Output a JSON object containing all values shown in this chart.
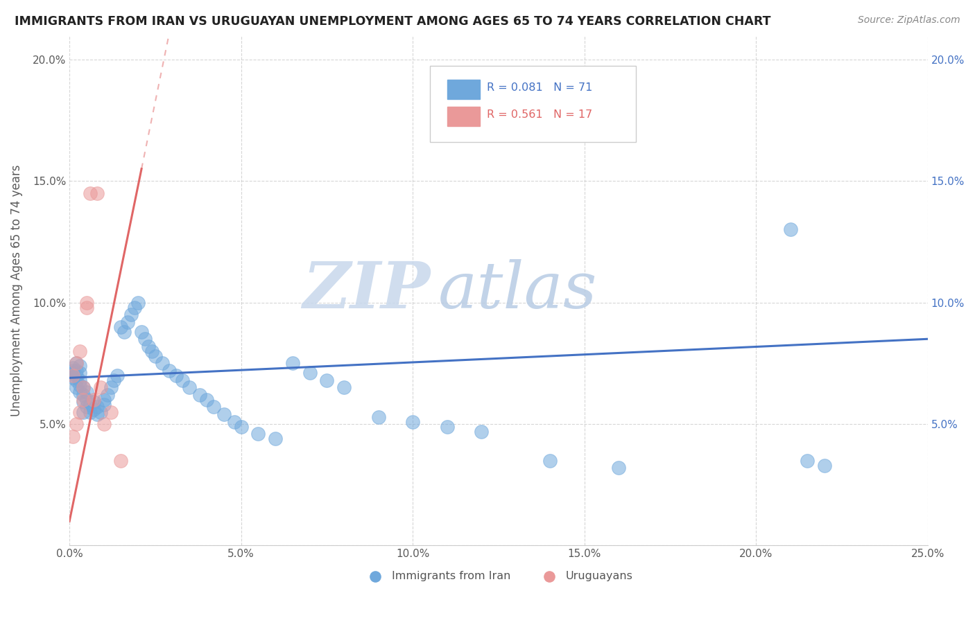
{
  "title": "IMMIGRANTS FROM IRAN VS URUGUAYAN UNEMPLOYMENT AMONG AGES 65 TO 74 YEARS CORRELATION CHART",
  "source": "Source: ZipAtlas.com",
  "ylabel": "Unemployment Among Ages 65 to 74 years",
  "xlim": [
    0.0,
    0.25
  ],
  "ylim": [
    0.0,
    0.21
  ],
  "xticks": [
    0.0,
    0.05,
    0.1,
    0.15,
    0.2,
    0.25
  ],
  "xtick_labels": [
    "0.0%",
    "5.0%",
    "10.0%",
    "15.0%",
    "20.0%",
    "25.0%"
  ],
  "yticks": [
    0.0,
    0.05,
    0.1,
    0.15,
    0.2
  ],
  "ytick_labels_left": [
    "",
    "5.0%",
    "10.0%",
    "15.0%",
    "20.0%"
  ],
  "ytick_labels_right": [
    "",
    "5.0%",
    "10.0%",
    "15.0%",
    "20.0%"
  ],
  "legend_labels": [
    "Immigrants from Iran",
    "Uruguayans"
  ],
  "R_blue": 0.081,
  "N_blue": 71,
  "R_pink": 0.561,
  "N_pink": 17,
  "blue_color": "#6fa8dc",
  "pink_color": "#ea9999",
  "blue_line_color": "#4472c4",
  "pink_line_color": "#e06666",
  "watermark_zip": "ZIP",
  "watermark_atlas": "atlas",
  "watermark_color_zip": "#c8d8ec",
  "watermark_color_atlas": "#b8cce4",
  "background_color": "#ffffff",
  "blue_scatter_x": [
    0.001,
    0.001,
    0.001,
    0.001,
    0.002,
    0.002,
    0.002,
    0.002,
    0.002,
    0.003,
    0.003,
    0.003,
    0.003,
    0.003,
    0.004,
    0.004,
    0.004,
    0.004,
    0.005,
    0.005,
    0.005,
    0.006,
    0.006,
    0.007,
    0.007,
    0.008,
    0.008,
    0.009,
    0.01,
    0.01,
    0.011,
    0.012,
    0.013,
    0.014,
    0.015,
    0.016,
    0.017,
    0.018,
    0.019,
    0.02,
    0.021,
    0.022,
    0.023,
    0.024,
    0.025,
    0.027,
    0.029,
    0.031,
    0.033,
    0.035,
    0.038,
    0.04,
    0.042,
    0.045,
    0.048,
    0.05,
    0.055,
    0.06,
    0.065,
    0.07,
    0.075,
    0.08,
    0.09,
    0.1,
    0.11,
    0.12,
    0.14,
    0.16,
    0.21,
    0.215,
    0.22
  ],
  "blue_scatter_y": [
    0.069,
    0.071,
    0.072,
    0.073,
    0.065,
    0.068,
    0.07,
    0.072,
    0.075,
    0.063,
    0.066,
    0.068,
    0.071,
    0.074,
    0.055,
    0.059,
    0.062,
    0.065,
    0.057,
    0.06,
    0.063,
    0.055,
    0.058,
    0.056,
    0.059,
    0.054,
    0.057,
    0.055,
    0.058,
    0.06,
    0.062,
    0.065,
    0.068,
    0.07,
    0.09,
    0.088,
    0.092,
    0.095,
    0.098,
    0.1,
    0.088,
    0.085,
    0.082,
    0.08,
    0.078,
    0.075,
    0.072,
    0.07,
    0.068,
    0.065,
    0.062,
    0.06,
    0.057,
    0.054,
    0.051,
    0.049,
    0.046,
    0.044,
    0.075,
    0.071,
    0.068,
    0.065,
    0.053,
    0.051,
    0.049,
    0.047,
    0.035,
    0.032,
    0.13,
    0.035,
    0.033
  ],
  "pink_scatter_x": [
    0.001,
    0.001,
    0.002,
    0.002,
    0.003,
    0.003,
    0.004,
    0.004,
    0.005,
    0.005,
    0.006,
    0.007,
    0.008,
    0.009,
    0.01,
    0.012,
    0.015
  ],
  "pink_scatter_y": [
    0.045,
    0.07,
    0.05,
    0.075,
    0.055,
    0.08,
    0.06,
    0.065,
    0.098,
    0.1,
    0.145,
    0.06,
    0.145,
    0.065,
    0.05,
    0.055,
    0.035
  ],
  "blue_line_x0": 0.0,
  "blue_line_x1": 0.25,
  "blue_line_y0": 0.069,
  "blue_line_y1": 0.085,
  "pink_line_x0": 0.0,
  "pink_line_x1": 0.021,
  "pink_line_y0": 0.01,
  "pink_line_y1": 0.155,
  "pink_line_dashed_x0": 0.0,
  "pink_line_dashed_x1": 0.021,
  "pink_line_dashed_y0": 0.155,
  "pink_line_dashed_y1": 0.21
}
